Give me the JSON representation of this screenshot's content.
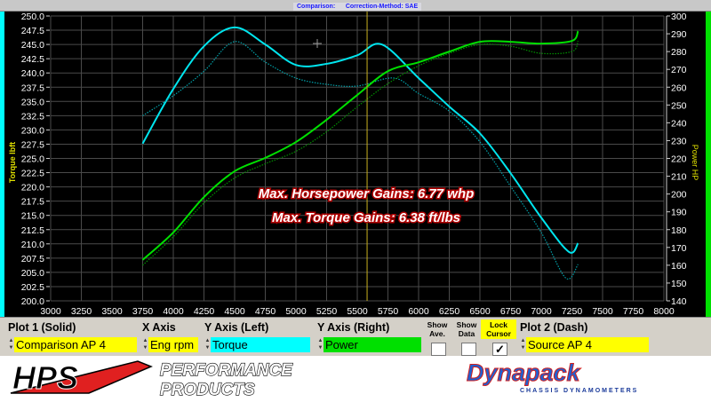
{
  "header": {
    "caption": "Comparison:      Correction-Method: SAE"
  },
  "annotations": {
    "hp_gain": "Max. Horsepower Gains:  6.77 whp",
    "tq_gain": "Max. Torque Gains: 6.38 ft/lbs"
  },
  "controls": {
    "plot1_label": "Plot 1 (Solid)",
    "plot1_value": "Comparison AP 4",
    "xaxis_label": "X Axis",
    "xaxis_value": "Eng rpm",
    "yleft_label": "Y Axis (Left)",
    "yleft_value": "Torque",
    "yright_label": "Y Axis (Right)",
    "yright_value": "Power",
    "show_ave": "Show Ave.",
    "show_data": "Show Data",
    "lock_cursor": "Lock Cursor",
    "show_ave_checked": false,
    "show_data_checked": false,
    "lock_cursor_checked": true,
    "check_mark": "✓",
    "plot2_label": "Plot 2 (Dash)",
    "plot2_value": "Source AP 4",
    "colors": {
      "plot": "#ffff00",
      "left": "#00ffff",
      "right": "#00e000"
    }
  },
  "logos": {
    "hps": "HPS",
    "hps_sub1": "PERFORMANCE",
    "hps_sub2": "PRODUCTS",
    "dynapack": "Dynapack",
    "dynapack_sub": "CHASSIS   DYNAMOMETERS"
  },
  "chart_data": {
    "type": "line",
    "xlabel": "",
    "ylabel_left": "Torque lbft",
    "ylabel_right": "Power HP",
    "xlim": [
      3000,
      8000
    ],
    "ylim_left": [
      200,
      250
    ],
    "ylim_right": [
      140,
      300
    ],
    "xticks": [
      3000,
      3250,
      3500,
      3750,
      4000,
      4250,
      4500,
      4750,
      5000,
      5250,
      5500,
      5750,
      6000,
      6250,
      6500,
      6750,
      7000,
      7250,
      7500,
      7750,
      8000
    ],
    "yticks_left": [
      "200.0",
      "202.5",
      "205.0",
      "207.5",
      "210.0",
      "212.5",
      "215.0",
      "217.5",
      "220.0",
      "222.5",
      "225.0",
      "227.5",
      "230.0",
      "232.5",
      "235.0",
      "237.5",
      "240.0",
      "242.5",
      "245.0",
      "247.5",
      "250.0"
    ],
    "yticks_right": [
      "140",
      "150",
      "160",
      "170",
      "180",
      "190",
      "200",
      "210",
      "220",
      "230",
      "240",
      "250",
      "260",
      "270",
      "280",
      "290",
      "300"
    ],
    "grid": true,
    "cursor_rpm": 5580,
    "series": [
      {
        "axis": "left",
        "style": "solid",
        "color": "#00e5ee",
        "x": [
          3750,
          4000,
          4250,
          4500,
          4750,
          5000,
          5250,
          5500,
          5700,
          6000,
          6250,
          6500,
          6750,
          7000,
          7225,
          7300
        ],
        "y": [
          227.6,
          237.2,
          244.7,
          248.0,
          245.0,
          241.4,
          241.6,
          243.1,
          245.0,
          239.1,
          234.1,
          229.4,
          222.4,
          214.6,
          208.6,
          210.1
        ]
      },
      {
        "axis": "left",
        "style": "dash",
        "color": "#00a0a8",
        "x": [
          3750,
          4000,
          4250,
          4500,
          4750,
          5000,
          5250,
          5500,
          5800,
          6000,
          6250,
          6500,
          6750,
          7000,
          7200,
          7300
        ],
        "y": [
          232.5,
          236.0,
          240.3,
          245.5,
          241.9,
          239.1,
          238.0,
          237.7,
          239.1,
          236.4,
          233.3,
          227.9,
          220.1,
          212.0,
          204.0,
          206.4
        ]
      },
      {
        "axis": "right",
        "style": "solid",
        "color": "#00e000",
        "x": [
          3750,
          4000,
          4250,
          4500,
          4750,
          5000,
          5250,
          5500,
          5750,
          6000,
          6250,
          6500,
          6750,
          7000,
          7250,
          7300
        ],
        "y": [
          163,
          178.4,
          198.3,
          212.8,
          220.3,
          229.2,
          241.7,
          255.6,
          269,
          274,
          280,
          285.5,
          285.5,
          284.5,
          286,
          291.5
        ]
      },
      {
        "axis": "right",
        "style": "dash",
        "color": "#009000",
        "x": [
          3750,
          4000,
          4250,
          4500,
          4750,
          5000,
          5250,
          5500,
          5750,
          6000,
          6250,
          6500,
          6750,
          7000,
          7250,
          7300
        ],
        "y": [
          160,
          176,
          195,
          209,
          217,
          224,
          235,
          249,
          262,
          272,
          279,
          284,
          283,
          279,
          280,
          286
        ]
      }
    ]
  }
}
